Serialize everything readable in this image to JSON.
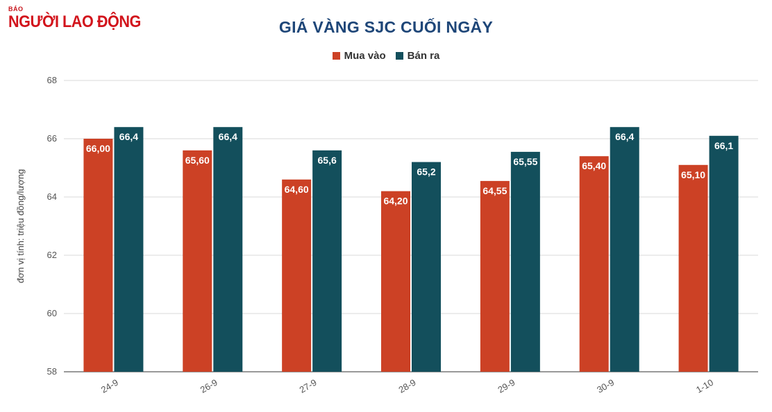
{
  "logo": {
    "top_text": "BÁO",
    "name": "NGƯỜI LAO ĐỘNG"
  },
  "chart_data": {
    "type": "bar",
    "title": "GIÁ VÀNG SJC CUỐI NGÀY",
    "ylabel": "đơn vị tính: triệu đồng/lượng",
    "xlabel": "",
    "ylim": [
      58,
      68
    ],
    "yticks": [
      "58",
      "60",
      "62",
      "64",
      "66",
      "68"
    ],
    "categories": [
      "24-9",
      "26-9",
      "27-9",
      "28-9",
      "29-9",
      "30-9",
      "1-10"
    ],
    "series": [
      {
        "name": "Mua vào",
        "color": "#cc4125",
        "values": [
          66.0,
          65.6,
          64.6,
          64.2,
          64.55,
          65.4,
          65.1
        ],
        "labels": [
          "66,00",
          "65,60",
          "64,60",
          "64,20",
          "64,55",
          "65,40",
          "65,10"
        ]
      },
      {
        "name": "Bán ra",
        "color": "#134f5c",
        "values": [
          66.4,
          66.4,
          65.6,
          65.2,
          65.55,
          66.4,
          66.1
        ],
        "labels": [
          "66,4",
          "66,4",
          "65,6",
          "65,2",
          "65,55",
          "66,4",
          "66,1"
        ]
      }
    ],
    "grid": true,
    "legend_position": "top"
  }
}
